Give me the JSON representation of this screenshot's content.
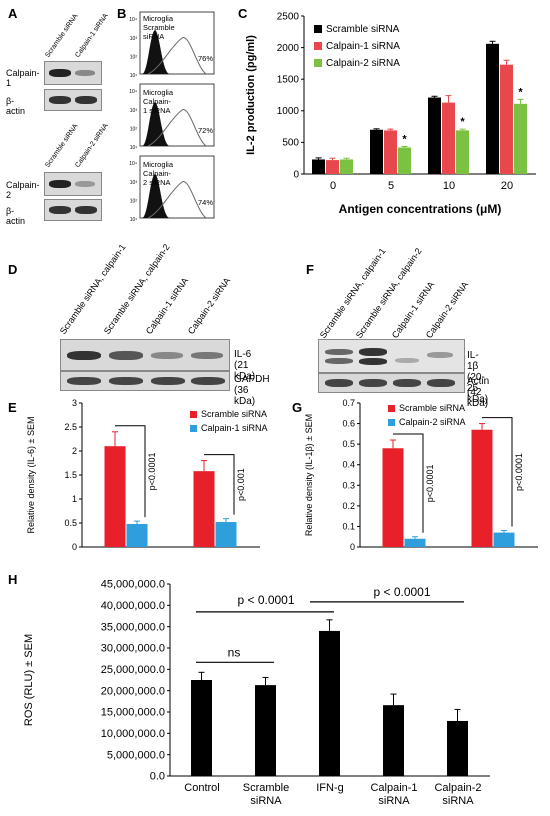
{
  "panel_labels": {
    "A": "A",
    "B": "B",
    "C": "C",
    "D": "D",
    "E": "E",
    "F": "F",
    "G": "G",
    "H": "H"
  },
  "panel_a": {
    "lanes_top": [
      "Scramble siRNA",
      "Calpain-1 siRNA"
    ],
    "rows_top": [
      "Calpain-1",
      "β-actin"
    ],
    "lanes_bottom": [
      "Scramble siRNA",
      "Calpain-2 siRNA"
    ],
    "rows_bottom": [
      "Calpain-2",
      "β-actin"
    ]
  },
  "panel_b": {
    "plots": [
      {
        "line1": "Microglia",
        "line2": "Scramble siRNA",
        "pct": "76%"
      },
      {
        "line1": "Microglia",
        "line2": "Calpain-1 siRNA",
        "pct": "72%"
      },
      {
        "line1": "Microglia",
        "line2": "Calpain-2 siRNA",
        "pct": "74%"
      }
    ],
    "axis_tick_labels": [
      "10¹",
      "10²",
      "10³",
      "10⁴"
    ]
  },
  "panel_d": {
    "lanes": [
      "Scramble siRNA, calpain-1",
      "Scramble siRNA, calpain-2",
      "Calpain-1 siRNA",
      "Calpain-2 siRNA"
    ],
    "rows": [
      "IL-6 (21 kDa)",
      "GAPDH (36 kDa)"
    ]
  },
  "panel_f": {
    "lanes": [
      "Scramble siRNA, calpain-1",
      "Scramble siRNA, calpain-2",
      "Calpain-1 siRNA",
      "Calpain-2 siRNA"
    ],
    "rows": [
      "IL-1β (20-25 kDa)",
      "Actin (42 kDa)"
    ]
  },
  "chart_data": [
    {
      "id": "C",
      "type": "bar",
      "xlabel": "Antigen concentrations (μM)",
      "ylabel": "IL-2 production (pg/ml)",
      "categories": [
        "0",
        "5",
        "10",
        "20"
      ],
      "ylim": [
        0,
        2500
      ],
      "yticks": [
        0,
        500,
        1000,
        1500,
        2000,
        2500
      ],
      "legend_position": "top-left",
      "series": [
        {
          "name": "Scramble siRNA",
          "color": "#000000",
          "values": [
            230,
            700,
            1210,
            2060
          ],
          "errors": [
            25,
            15,
            20,
            40
          ]
        },
        {
          "name": "Calpain-1 siRNA",
          "color": "#e8474c",
          "values": [
            220,
            690,
            1130,
            1730
          ],
          "errors": [
            30,
            20,
            110,
            70
          ]
        },
        {
          "name": "Calpain-2 siRNA",
          "color": "#7cc242",
          "values": [
            230,
            420,
            690,
            1110
          ],
          "errors": [
            20,
            15,
            20,
            70
          ]
        }
      ],
      "annotations": [
        "*",
        "*",
        "*"
      ]
    },
    {
      "id": "E",
      "type": "bar",
      "ylabel": "Relative density (IL-6) ± SEM",
      "categories": [
        "",
        ""
      ],
      "ylim": [
        0,
        3
      ],
      "yticks": [
        0,
        0.5,
        1,
        1.5,
        2,
        2.5,
        3
      ],
      "legend_position": "top-right",
      "series": [
        {
          "name": "Scramble siRNA",
          "color": "#e8202a",
          "values": [
            2.1,
            1.58
          ],
          "errors": [
            0.3,
            0.22
          ]
        },
        {
          "name": "Calpain-1 siRNA",
          "color": "#2e9fdc",
          "values": [
            0.48,
            0.52
          ],
          "errors": [
            0.06,
            0.07
          ]
        }
      ],
      "annotations": [
        "p<0.0001",
        "p<0.001"
      ]
    },
    {
      "id": "G",
      "type": "bar",
      "ylabel": "Relative density (IL-1β) ± SEM",
      "categories": [
        "",
        ""
      ],
      "ylim": [
        0,
        0.7
      ],
      "yticks": [
        0,
        0.1,
        0.2,
        0.3,
        0.4,
        0.5,
        0.6,
        0.7
      ],
      "legend_position": "top-left",
      "series": [
        {
          "name": "Scramble siRNA",
          "color": "#e8202a",
          "values": [
            0.48,
            0.57
          ],
          "errors": [
            0.04,
            0.03
          ]
        },
        {
          "name": "Calpain-2 siRNA",
          "color": "#2e9fdc",
          "values": [
            0.04,
            0.07
          ],
          "errors": [
            0.01,
            0.01
          ]
        }
      ],
      "annotations": [
        "p<0.0001",
        "p<0.0001"
      ]
    },
    {
      "id": "H",
      "type": "bar",
      "ylabel": "ROS (RLU) ± SEM",
      "categories": [
        "Control",
        "Scramble\nsiRNA",
        "IFN-g",
        "Calpain-1\nsiRNA",
        "Calpain-2\nsiRNA"
      ],
      "ylim": [
        0,
        45000000
      ],
      "yticks": [
        0,
        5000000,
        10000000,
        15000000,
        20000000,
        25000000,
        30000000,
        35000000,
        40000000,
        45000000
      ],
      "ytick_labels": [
        "0.0",
        "5,000,000.0",
        "10,000,000.0",
        "15,000,000.0",
        "20,000,000.0",
        "25,000,000.0",
        "30,000,000.0",
        "35,000,000.0",
        "40,000,000.0",
        "45,000,000.0"
      ],
      "series": [
        {
          "name": "",
          "color": "#000000",
          "values": [
            22500000,
            21300000,
            34000000,
            16600000,
            12900000
          ],
          "errors": [
            1800000,
            1800000,
            2600000,
            2600000,
            2700000
          ]
        }
      ],
      "annotations": [
        "ns",
        "p < 0.0001",
        "p < 0.0001"
      ]
    }
  ]
}
